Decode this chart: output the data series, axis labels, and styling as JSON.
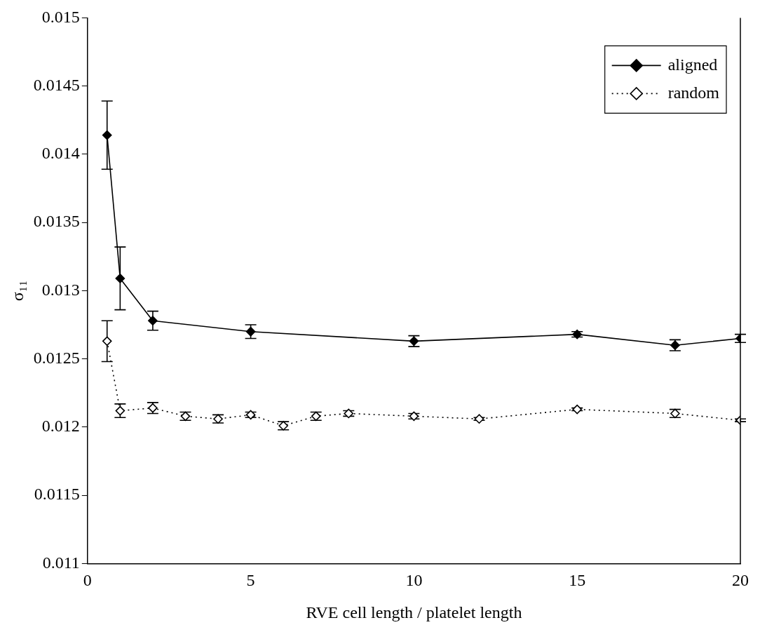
{
  "chart_data": {
    "type": "line",
    "xlabel": "RVE cell length / platelet length",
    "ylabel": "σ₁₁",
    "xlim": [
      0,
      20
    ],
    "xticks": [
      0,
      5,
      10,
      15,
      20
    ],
    "ylim": [
      0.011,
      0.015
    ],
    "yticks": [
      0.011,
      0.0115,
      0.012,
      0.0125,
      0.013,
      0.0135,
      0.014,
      0.0145,
      0.015
    ],
    "grid": false,
    "legend": "top right",
    "marker": "diamond",
    "series": [
      {
        "name": "aligned",
        "color": "#000000",
        "line_style": "solid",
        "x": [
          0.6,
          1,
          2,
          5,
          10,
          15,
          18,
          20
        ],
        "values": [
          0.01414,
          0.01309,
          0.01278,
          0.0127,
          0.01263,
          0.01268,
          0.0126,
          0.01265
        ],
        "errors": [
          0.00025,
          0.00023,
          7e-05,
          5e-05,
          4e-05,
          2e-05,
          4e-05,
          3e-05
        ]
      },
      {
        "name": "random",
        "color": "#000000",
        "line_style": "dotted",
        "x": [
          0.6,
          1,
          2,
          3,
          4,
          5,
          6,
          7,
          8,
          10,
          12,
          15,
          18,
          20
        ],
        "values": [
          0.01263,
          0.01212,
          0.01214,
          0.01208,
          0.01206,
          0.01209,
          0.01201,
          0.01208,
          0.0121,
          0.01208,
          0.01206,
          0.01213,
          0.0121,
          0.01205
        ],
        "errors": [
          0.00015,
          5e-05,
          4e-05,
          3e-05,
          3e-05,
          2e-05,
          3e-05,
          3e-05,
          2e-05,
          2e-05,
          1e-05,
          1e-05,
          3e-05,
          1e-05
        ]
      }
    ]
  }
}
